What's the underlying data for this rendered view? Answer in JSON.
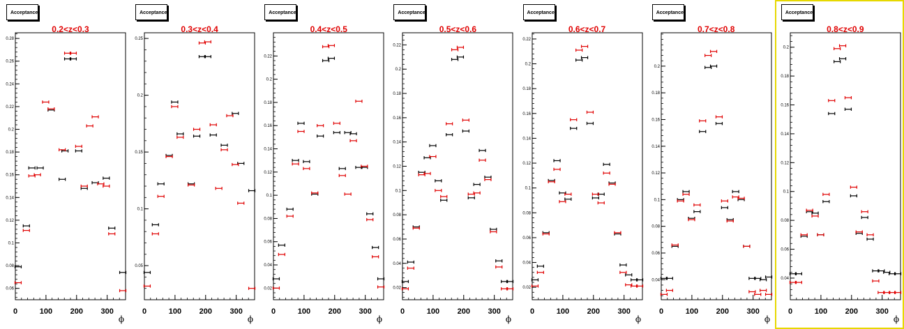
{
  "colors": {
    "series_black": "#000000",
    "series_red": "#e00000",
    "title": "#e00000",
    "selected_frame": "#e6d800"
  },
  "chart_data": [
    {
      "type": "scatter",
      "legend_box": "Acceptance",
      "title": "0.2<z<0.3",
      "xlabel": "ϕ",
      "xlim": [
        0,
        360
      ],
      "xticks": [
        0,
        100,
        200,
        300
      ],
      "ylim": [
        0.05,
        0.285
      ],
      "yticks": [
        0.06,
        0.08,
        0.1,
        0.12,
        0.14,
        0.16,
        0.18,
        0.2,
        0.22,
        0.24,
        0.26,
        0.28
      ],
      "ytick_labels": [
        "0.06",
        "0.08",
        "0.1",
        "0.12",
        "0.14",
        "0.16",
        "0.18",
        "0.2",
        "0.22",
        "0.24",
        "0.26",
        "0.28"
      ],
      "series": [
        {
          "color": "black",
          "x": [
            9,
            36,
            54,
            81,
            117,
            153,
            162,
            171,
            189,
            207,
            225,
            261,
            297,
            315,
            351
          ],
          "y": [
            0.079,
            0.115,
            0.166,
            0.166,
            0.217,
            0.156,
            0.181,
            0.262,
            0.262,
            0.181,
            0.148,
            0.153,
            0.157,
            0.113,
            0.074
          ]
        },
        {
          "color": "red",
          "x": [
            9,
            36,
            54,
            72,
            99,
            117,
            153,
            171,
            189,
            207,
            225,
            243,
            261,
            279,
            297,
            315,
            351
          ],
          "y": [
            0.065,
            0.111,
            0.159,
            0.16,
            0.224,
            0.218,
            0.182,
            0.267,
            0.267,
            0.185,
            0.15,
            0.203,
            0.211,
            0.152,
            0.15,
            0.108,
            0.058
          ]
        }
      ]
    },
    {
      "type": "scatter",
      "legend_box": "Acceptance",
      "title": "0.3<z<0.4",
      "xlabel": "ϕ",
      "xlim": [
        0,
        360
      ],
      "xticks": [
        0,
        100,
        200,
        300
      ],
      "ylim": [
        0.02,
        0.255
      ],
      "yticks": [
        0.05,
        0.1,
        0.15,
        0.2,
        0.25
      ],
      "ytick_labels": [
        "0.05",
        "0.1",
        "0.15",
        "0.2",
        "0.25"
      ],
      "series": [
        {
          "color": "black",
          "x": [
            9,
            36,
            54,
            81,
            99,
            117,
            153,
            171,
            189,
            207,
            225,
            261,
            297,
            315,
            351
          ],
          "y": [
            0.044,
            0.086,
            0.122,
            0.147,
            0.194,
            0.166,
            0.122,
            0.164,
            0.234,
            0.234,
            0.165,
            0.156,
            0.184,
            0.14,
            0.116
          ]
        },
        {
          "color": "red",
          "x": [
            9,
            36,
            54,
            81,
            99,
            117,
            153,
            171,
            189,
            207,
            225,
            243,
            261,
            279,
            297,
            315,
            351
          ],
          "y": [
            0.032,
            0.078,
            0.111,
            0.146,
            0.19,
            0.163,
            0.121,
            0.17,
            0.246,
            0.247,
            0.174,
            0.118,
            0.152,
            0.182,
            0.139,
            0.105,
            0.03
          ]
        }
      ]
    },
    {
      "type": "scatter",
      "legend_box": "Acceptance",
      "title": "0.4<z<0.5",
      "xlabel": "ϕ",
      "xlim": [
        0,
        360
      ],
      "xticks": [
        0,
        100,
        200,
        300
      ],
      "ylim": [
        0.01,
        0.24
      ],
      "yticks": [
        0.02,
        0.04,
        0.06,
        0.08,
        0.1,
        0.12,
        0.14,
        0.16,
        0.18,
        0.2,
        0.22
      ],
      "ytick_labels": [
        "0.02",
        "0.04",
        "0.06",
        "0.08",
        "0.1",
        "0.12",
        "0.14",
        "0.16",
        "0.18",
        "0.2",
        "0.22"
      ],
      "series": [
        {
          "color": "black",
          "x": [
            9,
            27,
            54,
            72,
            90,
            108,
            135,
            153,
            171,
            189,
            207,
            225,
            243,
            261,
            279,
            297,
            315,
            333,
            351
          ],
          "y": [
            0.028,
            0.057,
            0.088,
            0.13,
            0.162,
            0.129,
            0.101,
            0.151,
            0.216,
            0.218,
            0.154,
            0.123,
            0.154,
            0.153,
            0.124,
            0.124,
            0.084,
            0.055,
            0.028
          ]
        },
        {
          "color": "red",
          "x": [
            9,
            27,
            54,
            72,
            90,
            108,
            135,
            153,
            171,
            189,
            207,
            225,
            243,
            261,
            279,
            297,
            315,
            333,
            351
          ],
          "y": [
            0.02,
            0.049,
            0.082,
            0.127,
            0.155,
            0.123,
            0.102,
            0.16,
            0.228,
            0.229,
            0.162,
            0.117,
            0.101,
            0.147,
            0.181,
            0.125,
            0.079,
            0.047,
            0.021
          ]
        }
      ]
    },
    {
      "type": "scatter",
      "legend_box": "Acceptance",
      "title": "0.5<z<0.6",
      "xlabel": "ϕ",
      "xlim": [
        0,
        360
      ],
      "xticks": [
        0,
        100,
        200,
        300
      ],
      "ylim": [
        0.01,
        0.23
      ],
      "yticks": [
        0.02,
        0.04,
        0.06,
        0.08,
        0.1,
        0.12,
        0.14,
        0.16,
        0.18,
        0.2,
        0.22
      ],
      "ytick_labels": [
        "0.02",
        "0.04",
        "0.06",
        "0.08",
        "0.1",
        "0.12",
        "0.14",
        "0.16",
        "0.18",
        "0.2",
        "0.22"
      ],
      "series": [
        {
          "color": "black",
          "x": [
            9,
            27,
            45,
            63,
            81,
            99,
            117,
            135,
            153,
            171,
            189,
            207,
            225,
            243,
            261,
            279,
            297,
            315,
            333,
            351
          ],
          "y": [
            0.025,
            0.041,
            0.07,
            0.115,
            0.127,
            0.137,
            0.108,
            0.092,
            0.146,
            0.208,
            0.21,
            0.149,
            0.094,
            0.105,
            0.133,
            0.111,
            0.068,
            0.042,
            0.025,
            0.025
          ]
        },
        {
          "color": "red",
          "x": [
            9,
            27,
            45,
            63,
            81,
            99,
            117,
            135,
            153,
            171,
            189,
            207,
            225,
            243,
            261,
            279,
            297,
            315,
            333,
            351
          ],
          "y": [
            0.019,
            0.036,
            0.069,
            0.113,
            0.114,
            0.128,
            0.1,
            0.095,
            0.155,
            0.216,
            0.218,
            0.158,
            0.097,
            0.098,
            0.125,
            0.109,
            0.066,
            0.037,
            0.019,
            0.019
          ]
        }
      ]
    },
    {
      "type": "scatter",
      "legend_box": "Acceptance",
      "title": "0.6<z<0.7",
      "xlabel": "ϕ",
      "xlim": [
        0,
        360
      ],
      "xticks": [
        0,
        100,
        200,
        300
      ],
      "ylim": [
        0.01,
        0.225
      ],
      "yticks": [
        0.02,
        0.04,
        0.06,
        0.08,
        0.1,
        0.12,
        0.14,
        0.16,
        0.18,
        0.2,
        0.22
      ],
      "ytick_labels": [
        "0.02",
        "0.04",
        "0.06",
        "0.08",
        "0.1",
        "0.12",
        "0.14",
        "0.16",
        "0.18",
        "0.2",
        "0.22"
      ],
      "series": [
        {
          "color": "black",
          "x": [
            9,
            27,
            45,
            63,
            81,
            99,
            117,
            135,
            153,
            171,
            189,
            207,
            225,
            243,
            261,
            279,
            297,
            315,
            333,
            351
          ],
          "y": [
            0.026,
            0.037,
            0.064,
            0.106,
            0.122,
            0.096,
            0.091,
            0.148,
            0.203,
            0.205,
            0.152,
            0.092,
            0.095,
            0.119,
            0.104,
            0.063,
            0.038,
            0.03,
            0.026,
            0.026
          ]
        },
        {
          "color": "red",
          "x": [
            9,
            27,
            45,
            63,
            81,
            99,
            117,
            135,
            153,
            171,
            189,
            207,
            225,
            243,
            261,
            279,
            297,
            315,
            333,
            351
          ],
          "y": [
            0.021,
            0.032,
            0.063,
            0.105,
            0.115,
            0.089,
            0.095,
            0.155,
            0.211,
            0.214,
            0.161,
            0.095,
            0.088,
            0.112,
            0.103,
            0.064,
            0.032,
            0.022,
            0.021,
            0.021
          ]
        }
      ]
    },
    {
      "type": "scatter",
      "legend_box": "Acceptance",
      "title": "0.7<z<0.8",
      "xlabel": "ϕ",
      "xlim": [
        0,
        360
      ],
      "xticks": [
        0,
        100,
        200,
        300
      ],
      "ylim": [
        0.025,
        0.225
      ],
      "yticks": [
        0.04,
        0.06,
        0.08,
        0.1,
        0.12,
        0.14,
        0.16,
        0.18,
        0.2
      ],
      "ytick_labels": [
        "0.04",
        "0.06",
        "0.08",
        "0.1",
        "0.12",
        "0.14",
        "0.16",
        "0.18",
        "0.2"
      ],
      "series": [
        {
          "color": "black",
          "x": [
            9,
            27,
            45,
            63,
            81,
            99,
            117,
            135,
            153,
            171,
            189,
            207,
            225,
            243,
            261,
            279,
            297,
            315,
            333,
            351
          ],
          "y": [
            0.041,
            0.041,
            0.065,
            0.1,
            0.106,
            0.086,
            0.091,
            0.151,
            0.199,
            0.2,
            0.157,
            0.094,
            0.085,
            0.106,
            0.1,
            0.065,
            0.041,
            0.041,
            0.04,
            0.042
          ]
        },
        {
          "color": "red",
          "x": [
            9,
            27,
            45,
            63,
            81,
            99,
            117,
            135,
            153,
            171,
            189,
            207,
            225,
            243,
            261,
            279,
            297,
            315,
            333,
            351
          ],
          "y": [
            0.029,
            0.032,
            0.066,
            0.099,
            0.104,
            0.085,
            0.096,
            0.159,
            0.208,
            0.211,
            0.162,
            0.099,
            0.084,
            0.102,
            0.101,
            0.065,
            0.031,
            0.029,
            0.032,
            0.029
          ]
        }
      ]
    },
    {
      "type": "scatter",
      "legend_box": "Acceptance",
      "title": "0.8<z<0.9",
      "xlabel": "ϕ",
      "xlim": [
        0,
        360
      ],
      "xticks": [
        0,
        100,
        200,
        300
      ],
      "ylim": [
        0.025,
        0.21
      ],
      "yticks": [
        0.04,
        0.06,
        0.08,
        0.1,
        0.12,
        0.14,
        0.16,
        0.18,
        0.2
      ],
      "ytick_labels": [
        "0.04",
        "0.06",
        "0.08",
        "0.1",
        "0.12",
        "0.14",
        "0.16",
        "0.18",
        "0.2"
      ],
      "series": [
        {
          "color": "black",
          "x": [
            9,
            27,
            45,
            63,
            81,
            99,
            117,
            135,
            153,
            171,
            189,
            207,
            225,
            243,
            261,
            279,
            297,
            315,
            333,
            351
          ],
          "y": [
            0.043,
            0.043,
            0.069,
            0.086,
            0.085,
            0.07,
            0.093,
            0.154,
            0.19,
            0.192,
            0.157,
            0.097,
            0.071,
            0.082,
            0.067,
            0.045,
            0.045,
            0.044,
            0.043,
            0.043
          ]
        },
        {
          "color": "red",
          "x": [
            9,
            27,
            45,
            63,
            81,
            99,
            117,
            135,
            153,
            171,
            189,
            207,
            225,
            243,
            261,
            279,
            297,
            315,
            333,
            351
          ],
          "y": [
            0.037,
            0.037,
            0.07,
            0.087,
            0.083,
            0.07,
            0.098,
            0.163,
            0.199,
            0.201,
            0.165,
            0.103,
            0.072,
            0.086,
            0.07,
            0.038,
            0.03,
            0.03,
            0.03,
            0.03
          ]
        }
      ]
    }
  ]
}
